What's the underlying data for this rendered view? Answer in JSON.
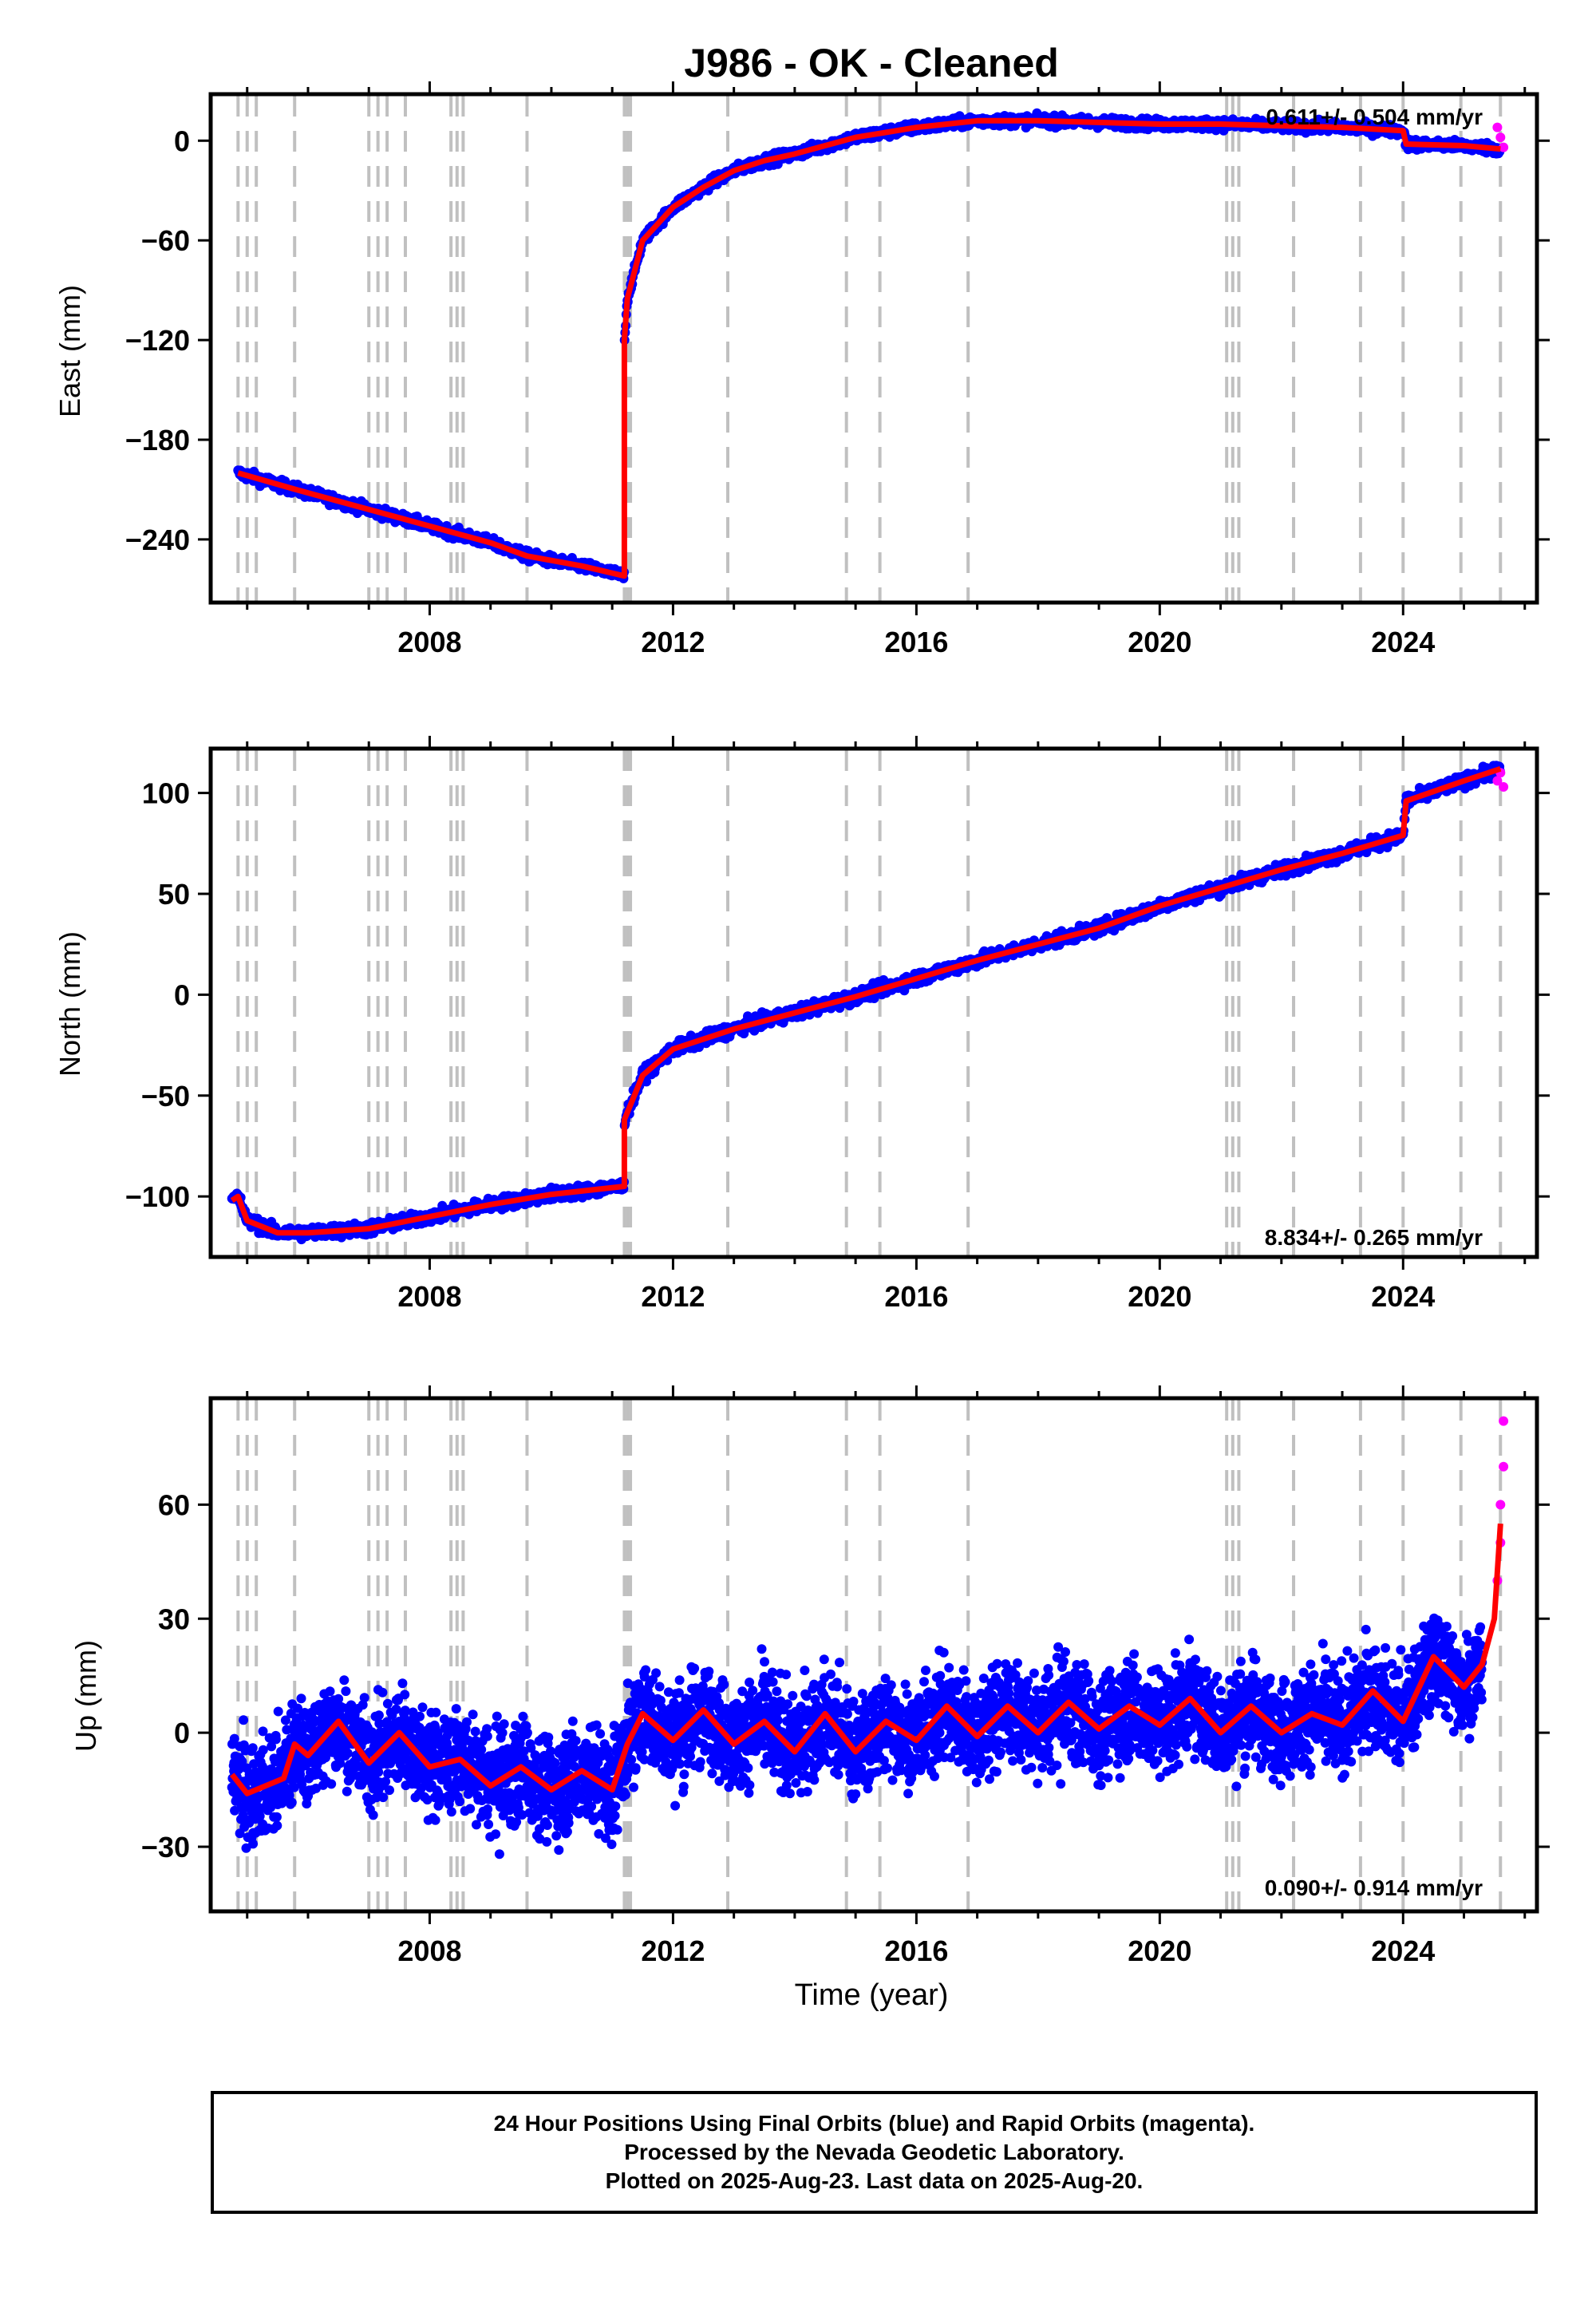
{
  "title": "J986  - OK - Cleaned",
  "colors": {
    "final_orbits": "#0000ff",
    "rapid_orbits": "#ff00ff",
    "model": "#ff0000",
    "event_lines": "#c0c0c0",
    "frame": "#000000"
  },
  "xlabel": "Time (year)",
  "x_ticks": [
    2008,
    2012,
    2016,
    2020,
    2024
  ],
  "xlim": [
    2004.4,
    2026.2
  ],
  "event_lines": [
    2004.85,
    2005.0,
    2005.15,
    2005.78,
    2007.0,
    2007.15,
    2007.3,
    2007.6,
    2008.35,
    2008.45,
    2008.55,
    2009.6,
    2011.2,
    2011.25,
    2011.3,
    2012.9,
    2014.85,
    2015.4,
    2016.85,
    2021.1,
    2021.2,
    2021.3,
    2022.2,
    2023.3,
    2024.0,
    2024.95,
    2025.6
  ],
  "caption": {
    "line1": "24 Hour Positions Using Final Orbits (blue) and Rapid Orbits (magenta).",
    "line2": "Processed by the Nevada Geodetic Laboratory.",
    "line3": "Plotted on 2025-Aug-23. Last data on 2025-Aug-20."
  },
  "chart_data": [
    {
      "type": "scatter",
      "ylabel": "East (mm)",
      "ylim": [
        -278,
        28
      ],
      "y_ticks": [
        0,
        -60,
        -120,
        -180,
        -240
      ],
      "rate_label": "0.611+/- 0.504 mm/yr",
      "rate_position": "top-right",
      "model_series": {
        "name": "model",
        "x": [
          2004.85,
          2005.8,
          2007.0,
          2008.0,
          2009.0,
          2009.6,
          2010.5,
          2011.2,
          2011.2,
          2011.25,
          2011.5,
          2012.0,
          2012.5,
          2013.0,
          2013.5,
          2014.0,
          2014.5,
          2015.0,
          2015.5,
          2016.0,
          2016.5,
          2017.0,
          2018.0,
          2019.0,
          2020.0,
          2021.0,
          2022.0,
          2023.0,
          2024.0,
          2024.05,
          2025.0,
          2025.6
        ],
        "y": [
          -200,
          -210,
          -222,
          -232,
          -242,
          -250,
          -256,
          -262,
          -120,
          -95,
          -60,
          -40,
          -28,
          -18,
          -12,
          -8,
          -3,
          2,
          5,
          8,
          10,
          12,
          12,
          11,
          10,
          10,
          9,
          8,
          6,
          -2,
          -3,
          -5
        ]
      },
      "final_series": {
        "name": "Final Orbits",
        "x": [
          2004.85,
          2005.8,
          2007.0,
          2008.0,
          2009.0,
          2010.5,
          2011.2,
          2011.5,
          2012.0,
          2013.0,
          2014.0,
          2015.0,
          2016.0,
          2017.0,
          2018.0,
          2019.0,
          2020.0,
          2021.0,
          2022.0,
          2023.0,
          2024.0,
          2024.05,
          2025.0,
          2025.6
        ],
        "y": [
          -200,
          -210,
          -222,
          -232,
          -242,
          -256,
          -262,
          -60,
          -40,
          -18,
          -8,
          2,
          8,
          12,
          12,
          11,
          10,
          10,
          9,
          8,
          6,
          -2,
          -3,
          -5
        ]
      },
      "rapid_series": {
        "name": "Rapid Orbits",
        "x": [
          2025.55,
          2025.6,
          2025.65
        ],
        "y": [
          8,
          2,
          -4
        ]
      }
    },
    {
      "type": "scatter",
      "ylabel": "North (mm)",
      "ylim": [
        -130,
        122
      ],
      "y_ticks": [
        100,
        50,
        0,
        -50,
        -100
      ],
      "rate_label": "8.834+/- 0.265 mm/yr",
      "rate_position": "bottom-right",
      "model_series": {
        "name": "model",
        "x": [
          2004.75,
          2004.85,
          2005.0,
          2005.5,
          2006.0,
          2007.0,
          2008.0,
          2009.0,
          2010.0,
          2011.2,
          2011.2,
          2011.5,
          2012.0,
          2013.0,
          2014.0,
          2015.0,
          2016.0,
          2017.0,
          2018.0,
          2019.0,
          2020.0,
          2021.0,
          2022.0,
          2023.0,
          2024.0,
          2024.05,
          2025.0,
          2025.6
        ],
        "y": [
          -102,
          -100,
          -112,
          -118,
          -118,
          -116,
          -110,
          -104,
          -99,
          -95,
          -62,
          -40,
          -27,
          -17,
          -9,
          -1,
          8,
          17,
          25,
          33,
          44,
          53,
          62,
          70,
          79,
          96,
          106,
          112
        ]
      },
      "final_series": {
        "name": "Final Orbits",
        "x": [
          2004.75,
          2005.0,
          2006.0,
          2007.0,
          2008.0,
          2009.0,
          2010.0,
          2011.2,
          2011.5,
          2012.0,
          2013.0,
          2014.0,
          2015.0,
          2016.0,
          2017.0,
          2018.0,
          2019.0,
          2020.0,
          2021.0,
          2022.0,
          2023.0,
          2024.0,
          2024.05,
          2025.0,
          2025.6
        ],
        "y": [
          -102,
          -112,
          -118,
          -116,
          -110,
          -104,
          -99,
          -95,
          -40,
          -27,
          -17,
          -9,
          -1,
          8,
          17,
          25,
          33,
          44,
          53,
          62,
          70,
          79,
          96,
          106,
          112
        ]
      },
      "rapid_series": {
        "name": "Rapid Orbits",
        "x": [
          2025.55,
          2025.6,
          2025.65
        ],
        "y": [
          106,
          110,
          103
        ]
      }
    },
    {
      "type": "scatter",
      "ylabel": "Up (mm)",
      "ylim": [
        -47,
        88
      ],
      "y_ticks": [
        60,
        30,
        0,
        -30
      ],
      "rate_label": "0.090+/- 0.914 mm/yr",
      "rate_position": "bottom-right",
      "model_series": {
        "name": "model",
        "x": [
          2004.75,
          2005.0,
          2005.3,
          2005.6,
          2005.78,
          2006.0,
          2006.5,
          2007.0,
          2007.5,
          2008.0,
          2008.5,
          2009.0,
          2009.5,
          2010.0,
          2010.5,
          2011.0,
          2011.25,
          2011.5,
          2012.0,
          2012.5,
          2013.0,
          2013.5,
          2014.0,
          2014.5,
          2015.0,
          2015.5,
          2016.0,
          2016.5,
          2017.0,
          2017.5,
          2018.0,
          2018.5,
          2019.0,
          2019.5,
          2020.0,
          2020.5,
          2021.0,
          2021.5,
          2022.0,
          2022.5,
          2023.0,
          2023.5,
          2024.0,
          2024.5,
          2025.0,
          2025.3,
          2025.5,
          2025.6
        ],
        "y": [
          -11,
          -16,
          -14,
          -12,
          -3,
          -6,
          3,
          -8,
          0,
          -9,
          -7,
          -14,
          -9,
          -15,
          -10,
          -15,
          -3,
          5,
          -2,
          6,
          -3,
          3,
          -5,
          5,
          -5,
          3,
          -2,
          7,
          -1,
          7,
          0,
          8,
          1,
          7,
          2,
          9,
          0,
          7,
          0,
          5,
          2,
          11,
          3,
          20,
          12,
          18,
          30,
          55
        ]
      },
      "final_series": {
        "name": "Final Orbits",
        "x": [
          2004.75,
          2005.0,
          2005.6,
          2006.0,
          2006.5,
          2007.0,
          2007.5,
          2008.0,
          2008.5,
          2009.0,
          2009.5,
          2010.0,
          2010.5,
          2011.0,
          2011.5,
          2012.0,
          2012.5,
          2013.0,
          2014.0,
          2015.0,
          2016.0,
          2017.0,
          2018.0,
          2019.0,
          2020.0,
          2021.0,
          2022.0,
          2023.0,
          2024.0,
          2024.5,
          2025.0,
          2025.3
        ],
        "y": [
          -11,
          -16,
          -12,
          -6,
          3,
          -8,
          0,
          -9,
          -7,
          -14,
          -9,
          -15,
          -10,
          -15,
          5,
          -2,
          6,
          -3,
          -5,
          -5,
          -2,
          -1,
          0,
          1,
          2,
          0,
          0,
          2,
          3,
          20,
          12,
          18
        ]
      },
      "rapid_series": {
        "name": "Rapid Orbits",
        "x": [
          2025.55,
          2025.6,
          2025.6,
          2025.65,
          2025.65
        ],
        "y": [
          40,
          50,
          60,
          70,
          82
        ]
      }
    }
  ]
}
